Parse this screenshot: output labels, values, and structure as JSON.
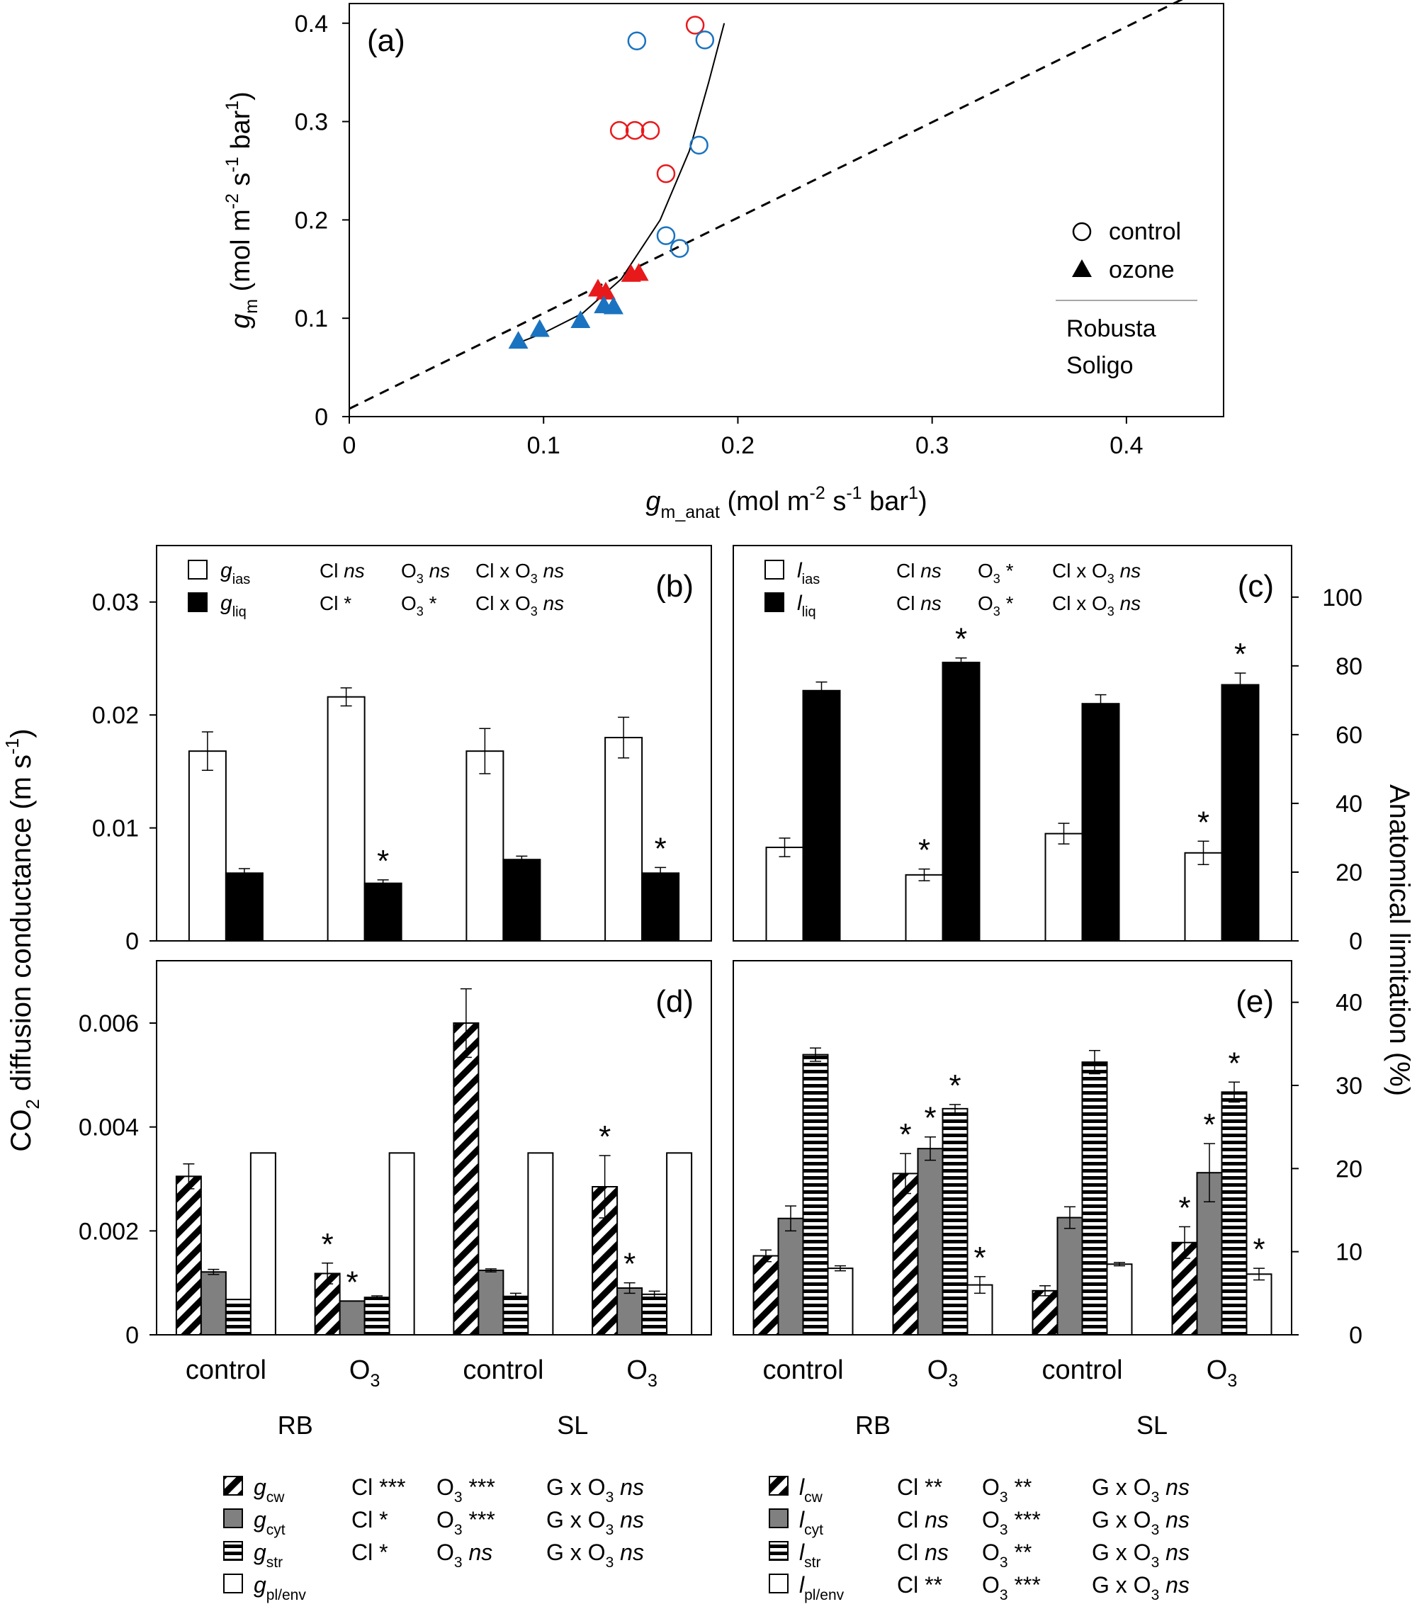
{
  "chart_data": [
    {
      "panel": "(a)",
      "type": "scatter",
      "ylabel": {
        "symbol": "g",
        "sub": "m",
        "unit": "(mol m",
        "exp1": "-2",
        "mid": " s",
        "exp2": "-1",
        "end": " bar",
        "exp3": "1",
        "close": ")"
      },
      "xlabel": {
        "symbol": "g",
        "sub": "m_anat",
        "unit": "(mol m",
        "exp1": "-2",
        "mid": " s",
        "exp2": "-1",
        "end": " bar",
        "exp3": "1",
        "close": ")"
      },
      "xlim": [
        0,
        0.45
      ],
      "ylim": [
        0,
        0.42
      ],
      "xticks": [
        "0",
        "0.1",
        "0.2",
        "0.3",
        "0.4"
      ],
      "xtick_values": [
        0,
        0.1,
        0.2,
        0.3,
        0.4
      ],
      "yticks": [
        "0",
        "0.1",
        "0.2",
        "0.3",
        "0.4"
      ],
      "ytick_values": [
        0,
        0.1,
        0.2,
        0.3,
        0.4
      ],
      "legend": {
        "markers": [
          {
            "label": "control",
            "shape": "open-circle"
          },
          {
            "label": "ozone",
            "shape": "filled-triangle"
          }
        ],
        "groups": [
          {
            "label": "Robusta",
            "color": "#e8191b"
          },
          {
            "label": "Soligo",
            "color": "#1a73c0"
          }
        ],
        "placement": "right"
      },
      "series": [
        {
          "name": "Robusta",
          "marker": "control",
          "color": "#e8191b",
          "points": [
            [
              0.178,
              0.398
            ],
            [
              0.139,
              0.291
            ],
            [
              0.147,
              0.291
            ],
            [
              0.155,
              0.291
            ],
            [
              0.163,
              0.247
            ]
          ]
        },
        {
          "name": "Soligo",
          "marker": "control",
          "color": "#1a73c0",
          "points": [
            [
              0.148,
              0.382
            ],
            [
              0.183,
              0.383
            ],
            [
              0.18,
              0.276
            ],
            [
              0.163,
              0.184
            ],
            [
              0.17,
              0.171
            ]
          ]
        },
        {
          "name": "Robusta",
          "marker": "ozone",
          "color": "#e8191b",
          "points": [
            [
              0.128,
              0.13
            ],
            [
              0.132,
              0.127
            ],
            [
              0.145,
              0.145
            ],
            [
              0.149,
              0.146
            ]
          ]
        },
        {
          "name": "Soligo",
          "marker": "ozone",
          "color": "#1a73c0",
          "points": [
            [
              0.087,
              0.077
            ],
            [
              0.098,
              0.089
            ],
            [
              0.119,
              0.098
            ],
            [
              0.131,
              0.113
            ],
            [
              0.136,
              0.112
            ]
          ]
        }
      ],
      "fit_curve": [
        [
          0.087,
          0.075
        ],
        [
          0.1,
          0.085
        ],
        [
          0.12,
          0.105
        ],
        [
          0.14,
          0.14
        ],
        [
          0.16,
          0.2
        ],
        [
          0.175,
          0.27
        ],
        [
          0.185,
          0.34
        ],
        [
          0.193,
          0.4
        ]
      ],
      "reference_line": [
        [
          0,
          0.008
        ],
        [
          0.45,
          0.445
        ]
      ]
    },
    {
      "panel": "(b)",
      "type": "bar",
      "ylim": [
        0,
        0.035
      ],
      "yticks": [
        "0",
        "0.01",
        "0.02",
        "0.03"
      ],
      "ytick_values": [
        0,
        0.01,
        0.02,
        0.03
      ],
      "categories": [
        "control",
        "O3",
        "control",
        "O3"
      ],
      "series": [
        {
          "name": "g_ias",
          "fill": "white",
          "values": [
            0.0168,
            0.0216,
            0.0168,
            0.018
          ],
          "errors": [
            0.0017,
            0.0008,
            0.002,
            0.0018
          ],
          "stars": [
            false,
            false,
            false,
            false
          ]
        },
        {
          "name": "g_liq",
          "fill": "black",
          "values": [
            0.006,
            0.0051,
            0.0072,
            0.006
          ],
          "errors": [
            0.0004,
            0.0003,
            0.0003,
            0.0005
          ],
          "stars": [
            false,
            true,
            false,
            true
          ]
        }
      ],
      "stats": [
        {
          "symbol": "g",
          "sub": "ias",
          "cl": "Cl",
          "cl_sig": "ns",
          "o3_sig": "ns",
          "int_sig": "ns"
        },
        {
          "symbol": "g",
          "sub": "liq",
          "cl": "Cl",
          "cl_sig": "*",
          "o3_sig": "*",
          "int_sig": "ns"
        }
      ]
    },
    {
      "panel": "(c)",
      "type": "bar",
      "ylim": [
        0,
        115
      ],
      "yticks": [
        "0",
        "20",
        "40",
        "60",
        "80",
        "100"
      ],
      "ytick_values": [
        0,
        20,
        40,
        60,
        80,
        100
      ],
      "categories": [
        "control",
        "O3",
        "control",
        "O3"
      ],
      "series": [
        {
          "name": "l_ias",
          "fill": "white",
          "values": [
            27.2,
            19.2,
            31.2,
            25.6
          ],
          "errors": [
            2.7,
            1.7,
            3.0,
            3.4
          ],
          "stars": [
            false,
            true,
            false,
            true
          ]
        },
        {
          "name": "l_liq",
          "fill": "black",
          "values": [
            72.8,
            81.0,
            69.0,
            74.5
          ],
          "errors": [
            2.5,
            1.3,
            2.6,
            3.4
          ],
          "stars": [
            false,
            true,
            false,
            true
          ]
        }
      ],
      "stats": [
        {
          "symbol": "l",
          "sub": "ias",
          "cl": "Cl",
          "cl_sig": "ns",
          "o3_sig": "*",
          "int_sig": "ns"
        },
        {
          "symbol": "l",
          "sub": "liq",
          "cl": "Cl",
          "cl_sig": "ns",
          "o3_sig": "*",
          "int_sig": "ns"
        }
      ]
    },
    {
      "panel": "(d)",
      "type": "bar",
      "ylim": [
        0,
        0.0072
      ],
      "yticks": [
        "0",
        "0.002",
        "0.004",
        "0.006"
      ],
      "ytick_values": [
        0,
        0.002,
        0.004,
        0.006
      ],
      "categories": [
        "control",
        "O3",
        "control",
        "O3"
      ],
      "series": [
        {
          "name": "g_cw",
          "fill": "diagonal",
          "values": [
            0.00305,
            0.00118,
            0.006,
            0.00285
          ],
          "errors": [
            0.00024,
            0.0002,
            0.00066,
            0.0006
          ],
          "stars": [
            false,
            true,
            false,
            true
          ]
        },
        {
          "name": "g_cyt",
          "fill": "gray",
          "values": [
            0.00121,
            0.00065,
            0.00124,
            0.0009
          ],
          "errors": [
            5e-05,
            0.0,
            3e-05,
            0.0001
          ],
          "stars": [
            false,
            true,
            false,
            true
          ]
        },
        {
          "name": "g_str",
          "fill": "horizontal",
          "values": [
            0.00068,
            0.00072,
            0.00074,
            0.00078
          ],
          "errors": [
            0.0,
            3e-05,
            6e-05,
            6e-05
          ],
          "stars": [
            false,
            false,
            false,
            false
          ]
        },
        {
          "name": "g_pl/env",
          "fill": "white",
          "values": [
            0.0035,
            0.0035,
            0.0035,
            0.0035
          ],
          "errors": [
            0,
            0,
            0,
            0
          ],
          "stars": [
            false,
            false,
            false,
            false
          ]
        }
      ]
    },
    {
      "panel": "(e)",
      "type": "bar",
      "ylim": [
        0,
        45
      ],
      "yticks": [
        "0",
        "10",
        "20",
        "30",
        "40"
      ],
      "ytick_values": [
        0,
        10,
        20,
        30,
        40
      ],
      "categories": [
        "control",
        "O3",
        "control",
        "O3"
      ],
      "series": [
        {
          "name": "l_cw",
          "fill": "diagonal",
          "values": [
            9.5,
            19.4,
            5.3,
            11.1
          ],
          "errors": [
            0.7,
            2.4,
            0.6,
            1.9
          ],
          "stars": [
            false,
            true,
            false,
            true
          ]
        },
        {
          "name": "l_cyt",
          "fill": "gray",
          "values": [
            14.0,
            22.4,
            14.1,
            19.5
          ],
          "errors": [
            1.5,
            1.4,
            1.3,
            3.5
          ],
          "stars": [
            false,
            true,
            false,
            true
          ]
        },
        {
          "name": "l_str",
          "fill": "horizontal",
          "values": [
            33.7,
            27.2,
            32.8,
            29.2
          ],
          "errors": [
            0.8,
            0.5,
            1.4,
            1.2
          ],
          "stars": [
            false,
            true,
            false,
            true
          ]
        },
        {
          "name": "l_pl/env",
          "fill": "white",
          "values": [
            8.0,
            6.0,
            8.5,
            7.3
          ],
          "errors": [
            0.3,
            1.0,
            0.2,
            0.7
          ],
          "stars": [
            false,
            true,
            false,
            true
          ]
        }
      ]
    }
  ],
  "axes_labels": {
    "left_prefix": "CO",
    "left_sub": "2",
    "left_text": " diffusion conductance (m s",
    "left_exp": "-1",
    "left_close": ")",
    "right": "Anatomical limitation (%)",
    "o3_base": "O",
    "o3_sub": "3",
    "control": "control",
    "groups": [
      "RB",
      "SL"
    ]
  },
  "bottom_legend": {
    "left": [
      {
        "symbol": "g",
        "sub": "cw",
        "fill": "diagonal",
        "cl": "Cl",
        "cl_sig": "***",
        "o3_sig": "***",
        "int": "G x O",
        "int_sig": "ns"
      },
      {
        "symbol": "g",
        "sub": "cyt",
        "fill": "gray",
        "cl": "Cl",
        "cl_sig": "*",
        "o3_sig": "***",
        "int": "G x O",
        "int_sig": "ns"
      },
      {
        "symbol": "g",
        "sub": "str",
        "fill": "horizontal",
        "cl": "Cl",
        "cl_sig": "*",
        "o3_sig": "ns",
        "int": "G x O",
        "int_sig": "ns"
      },
      {
        "symbol": "g",
        "sub": "pl/env",
        "fill": "white",
        "cl": "",
        "cl_sig": "",
        "o3_sig": "",
        "int": "",
        "int_sig": ""
      }
    ],
    "right": [
      {
        "symbol": "l",
        "sub": "cw",
        "fill": "diagonal",
        "cl": "Cl",
        "cl_sig": "**",
        "o3_sig": "**",
        "int": "G x O",
        "int_sig": "ns"
      },
      {
        "symbol": "l",
        "sub": "cyt",
        "fill": "gray",
        "cl": "Cl",
        "cl_sig": "ns",
        "o3_sig": "***",
        "int": "G x O",
        "int_sig": "ns"
      },
      {
        "symbol": "l",
        "sub": "str",
        "fill": "horizontal",
        "cl": "Cl",
        "cl_sig": "ns",
        "o3_sig": "**",
        "int": "G x O",
        "int_sig": "ns"
      },
      {
        "symbol": "l",
        "sub": "pl/env",
        "fill": "white",
        "cl": "Cl",
        "cl_sig": "**",
        "o3_sig": "***",
        "int": "G x O",
        "int_sig": "ns"
      }
    ]
  }
}
